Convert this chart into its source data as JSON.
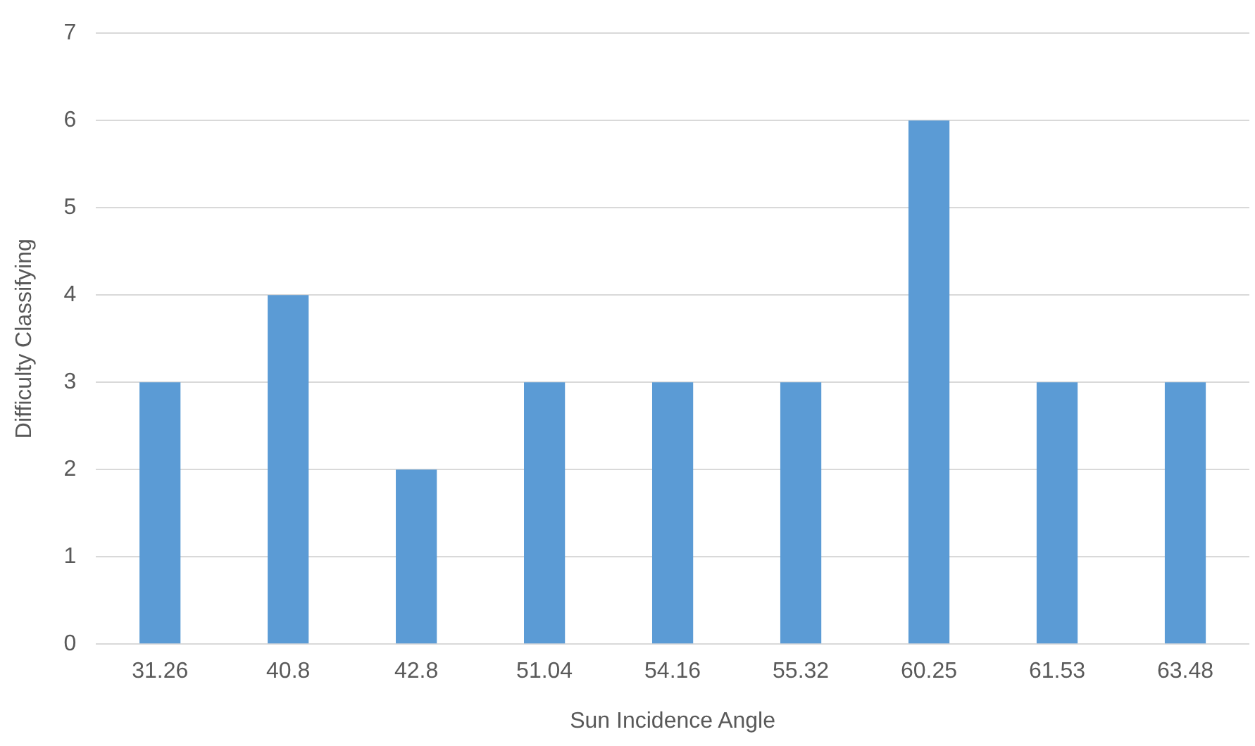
{
  "chart_data": {
    "type": "bar",
    "xlabel": "Sun Incidence Angle",
    "ylabel": "Difficulty Classifying",
    "categories": [
      "31.26",
      "40.8",
      "42.8",
      "51.04",
      "54.16",
      "55.32",
      "60.25",
      "61.53",
      "63.48"
    ],
    "values": [
      3,
      4,
      2,
      3,
      3,
      3,
      6,
      3,
      3
    ],
    "color": "#5b9bd5",
    "ylim": [
      0,
      7
    ],
    "yticks": [
      0,
      1,
      2,
      3,
      4,
      5,
      6,
      7
    ],
    "grid": "y",
    "legend": false
  }
}
